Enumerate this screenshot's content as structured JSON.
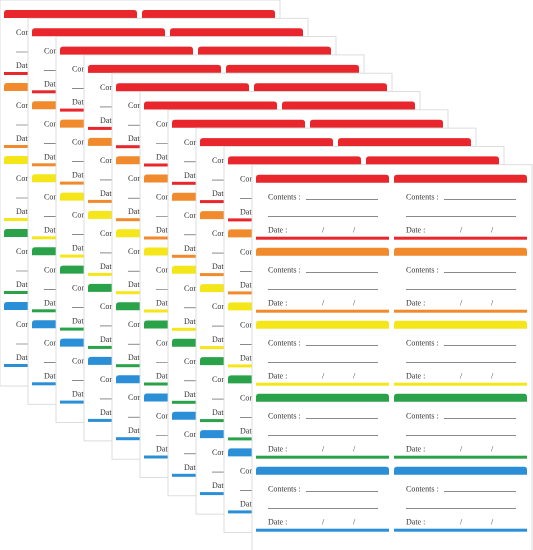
{
  "label": {
    "contents": "Contents :",
    "date": "Date :",
    "slash": "/"
  },
  "colors": [
    "#e8262b",
    "#f08a2c",
    "#f5e619",
    "#2aa24a",
    "#2a8fd6"
  ]
}
